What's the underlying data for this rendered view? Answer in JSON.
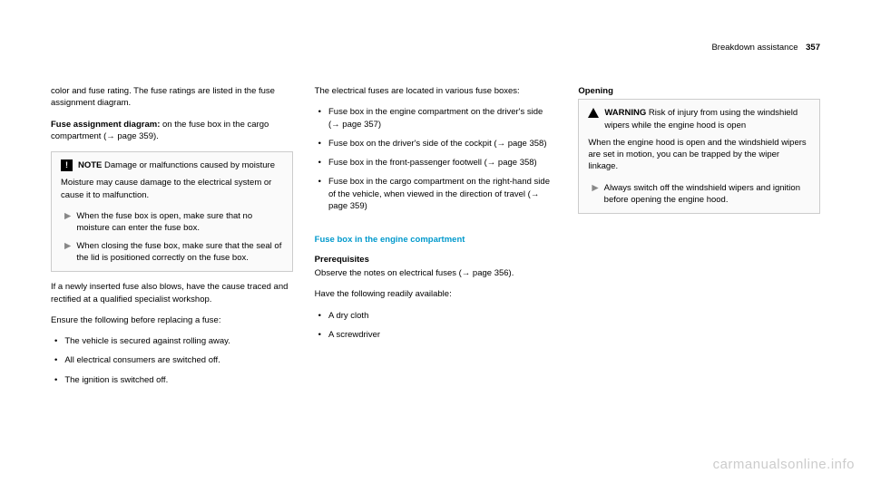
{
  "header": {
    "section": "Breakdown assistance",
    "pageNumber": "357"
  },
  "col1": {
    "intro": "color and fuse rating. The fuse ratings are listed in the fuse assignment diagram.",
    "assignment_label": "Fuse assignment diagram:",
    "assignment_text": " on the fuse box in the cargo compartment (→ page 359).",
    "note": {
      "title": "NOTE",
      "title_text": " Damage or malfunctions caused by moisture",
      "body": "Moisture may cause damage to the electrical system or cause it to malfunction.",
      "item1": "When the fuse box is open, make sure that no moisture can enter the fuse box.",
      "item2": "When closing the fuse box, make sure that the seal of the lid is positioned correctly on the fuse box."
    },
    "after_note": "If a newly inserted fuse also blows, have the cause traced and rectified at a qualified specialist workshop.",
    "ensure_heading": "Ensure the following before replacing a fuse:",
    "ensure1": "The vehicle is secured against rolling away.",
    "ensure2": "All electrical consumers are switched off.",
    "ensure3": "The ignition is switched off."
  },
  "col2": {
    "intro": "The electrical fuses are located in various fuse boxes:",
    "loc1": "Fuse box in the engine compartment on the driver's side (→ page 357)",
    "loc2": "Fuse box on the driver's side of the cockpit (→ page 358)",
    "loc3": "Fuse box in the front-passenger footwell (→ page 358)",
    "loc4": "Fuse box in the cargo compartment on the right-hand side of the vehicle, when viewed in the direction of travel (→ page 359)",
    "section_heading": "Fuse box in the engine compartment",
    "prereq_label": "Prerequisites",
    "prereq_text": "Observe the notes on electrical fuses (→ page 356).",
    "ready_text": "Have the following readily available:",
    "ready1": "A dry cloth",
    "ready2": "A screwdriver"
  },
  "col3": {
    "opening_heading": "Opening",
    "warning": {
      "title": "WARNING",
      "title_text": " Risk of injury from using the windshield wipers while the engine hood is open",
      "body": "When the engine hood is open and the windshield wipers are set in motion, you can be trapped by the wiper linkage.",
      "item": "Always switch off the windshield wipers and ignition before opening the engine hood."
    }
  },
  "watermark": "carmanualsonline.info"
}
